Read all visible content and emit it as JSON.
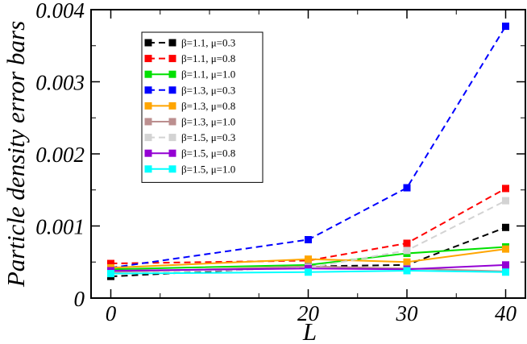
{
  "chart_data": {
    "type": "line",
    "title": "",
    "xlabel": "L",
    "ylabel": "Particle density error bars",
    "x": [
      0,
      20,
      30,
      40
    ],
    "xlim": [
      -2,
      42
    ],
    "ylim": [
      0,
      0.004
    ],
    "xticks": [
      0,
      20,
      30,
      40
    ],
    "xtick_labels": [
      "0",
      "20",
      "30",
      "40"
    ],
    "yticks": [
      0,
      0.001,
      0.002,
      0.003,
      0.004
    ],
    "ytick_labels": [
      "0",
      "0.001",
      "0.002",
      "0.003",
      "0.004"
    ],
    "grid": false,
    "legend_position": "top-left",
    "series": [
      {
        "name": "β=1.1, μ=0.3",
        "beta": "1.1",
        "mu": "0.3",
        "color": "#000000",
        "dashed": true,
        "values": [
          0.0003,
          0.00044,
          0.00046,
          0.00098
        ]
      },
      {
        "name": "β=1.1, μ=0.8",
        "beta": "1.1",
        "mu": "0.8",
        "color": "#ff0000",
        "dashed": true,
        "values": [
          0.00048,
          0.00052,
          0.00076,
          0.00152
        ]
      },
      {
        "name": "β=1.1, μ=1.0",
        "beta": "1.1",
        "mu": "1.0",
        "color": "#00e000",
        "dashed": false,
        "values": [
          0.0004,
          0.00046,
          0.00062,
          0.00071
        ]
      },
      {
        "name": "β=1.3, μ=0.3",
        "beta": "1.3",
        "mu": "0.3",
        "color": "#0000ff",
        "dashed": true,
        "values": [
          0.00042,
          0.00081,
          0.00153,
          0.00377
        ]
      },
      {
        "name": "β=1.3, μ=0.8",
        "beta": "1.3",
        "mu": "0.8",
        "color": "#ffa500",
        "dashed": false,
        "values": [
          0.00042,
          0.00054,
          0.0005,
          0.00068
        ]
      },
      {
        "name": "β=1.3, μ=1.0",
        "beta": "1.3",
        "mu": "1.0",
        "color": "#bc8f8f",
        "dashed": false,
        "values": [
          0.00036,
          0.00044,
          0.00041,
          0.00037
        ]
      },
      {
        "name": "β=1.5, μ=0.3",
        "beta": "1.5",
        "mu": "0.3",
        "color": "#d3d3d3",
        "dashed": true,
        "values": [
          0.00034,
          0.00042,
          0.00066,
          0.00135
        ]
      },
      {
        "name": "β=1.5, μ=0.8",
        "beta": "1.5",
        "mu": "0.8",
        "color": "#9400d3",
        "dashed": false,
        "values": [
          0.00038,
          0.00041,
          0.0004,
          0.00046
        ]
      },
      {
        "name": "β=1.5, μ=1.0",
        "beta": "1.5",
        "mu": "1.0",
        "color": "#00ffff",
        "dashed": false,
        "values": [
          0.00034,
          0.00036,
          0.00038,
          0.00036
        ]
      }
    ]
  }
}
